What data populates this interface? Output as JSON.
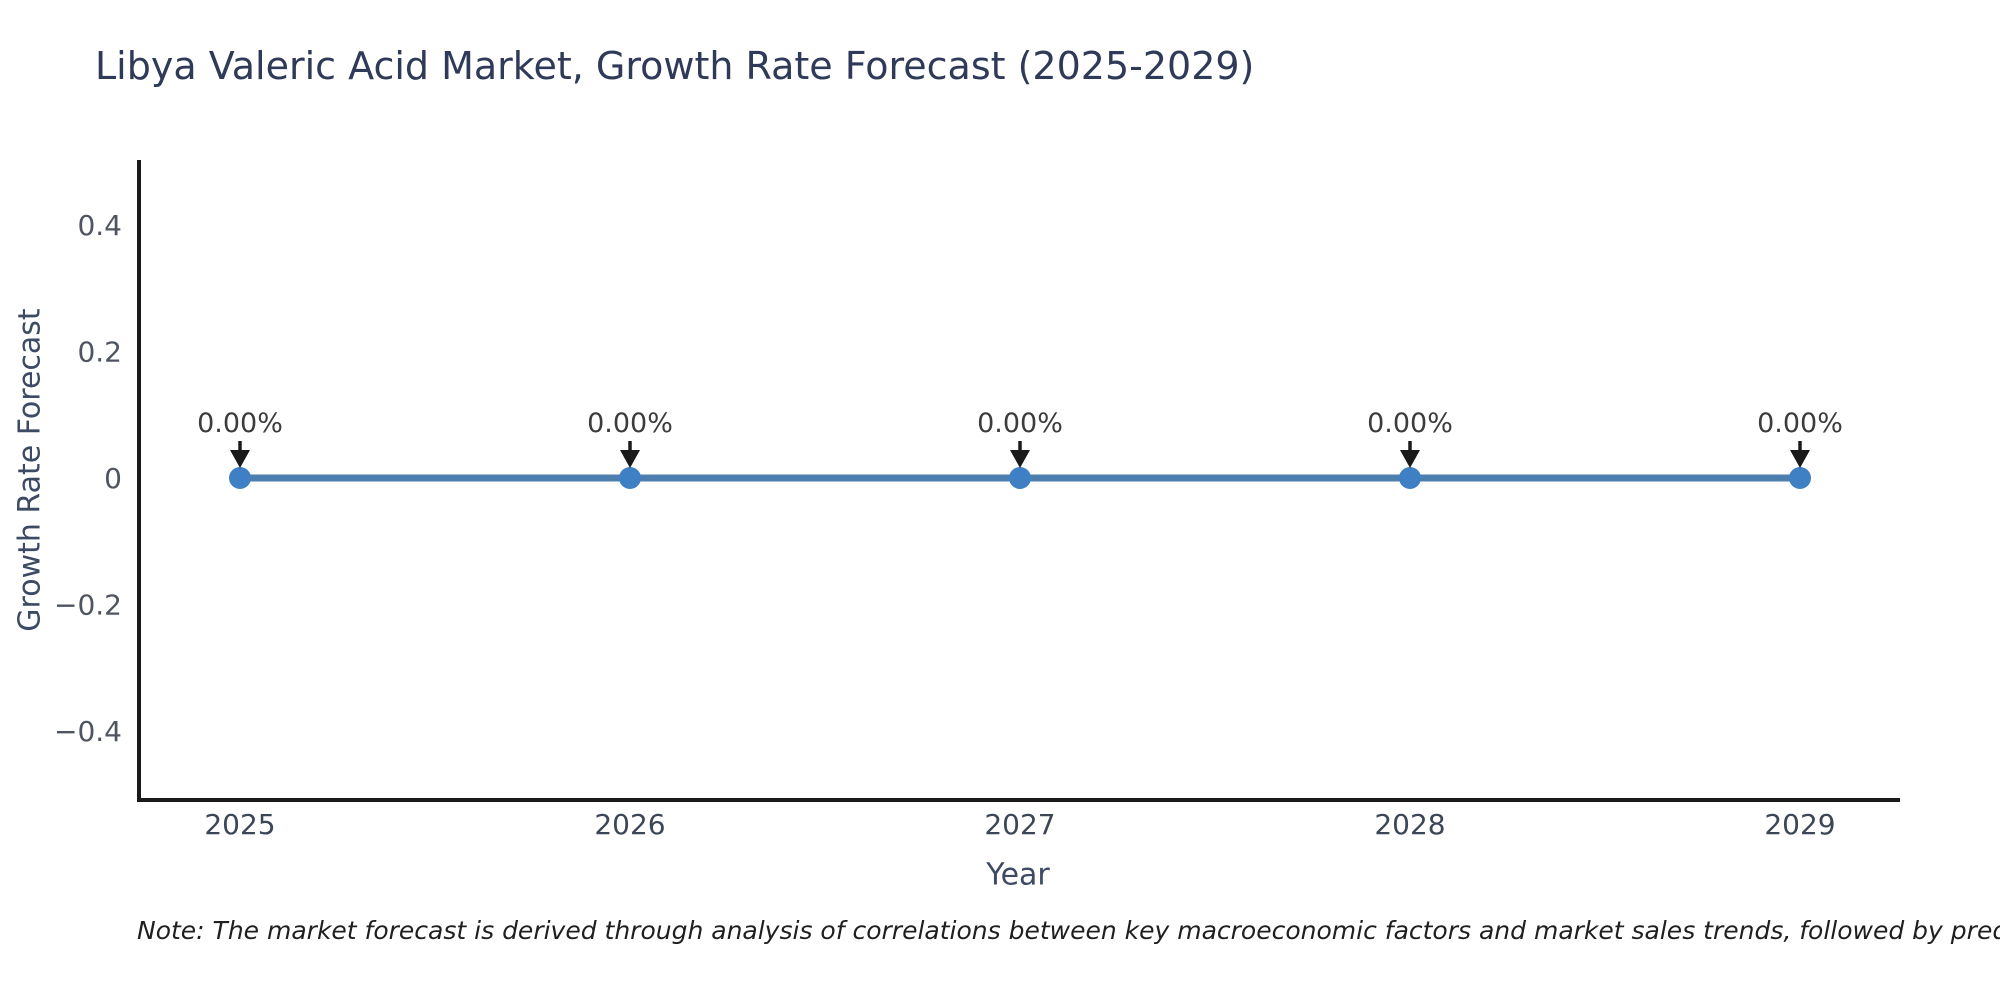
{
  "title": "Libya Valeric Acid Market, Growth Rate Forecast (2025-2029)",
  "footnote": "Note: The market forecast is derived through analysis of correlations between key macroeconomic factors and market sales trends, followed by predictive modeling to project future sa",
  "colors": {
    "line": "#4d7fae",
    "marker": "#3f80c4",
    "axis": "#1a1a1a",
    "arrow": "#1a1a1a",
    "title_text": "#2e3a57",
    "axis_title_text": "#3d4a63",
    "tick_text": "#4f5560",
    "annotation_text": "#3c3c3c"
  },
  "chart_data": {
    "type": "line",
    "title": "Libya Valeric Acid Market, Growth Rate Forecast (2025-2029)",
    "xlabel": "Year",
    "ylabel": "Growth Rate Forecast",
    "x": [
      2025,
      2026,
      2027,
      2028,
      2029
    ],
    "xtick_labels": [
      "2025",
      "2026",
      "2027",
      "2028",
      "2029"
    ],
    "series": [
      {
        "name": "Growth Rate Forecast",
        "values": [
          0,
          0,
          0,
          0,
          0
        ]
      }
    ],
    "annotations": [
      "0.00%",
      "0.00%",
      "0.00%",
      "0.00%",
      "0.00%"
    ],
    "yticks": [
      -0.4,
      -0.2,
      0,
      0.2,
      0.4
    ],
    "ytick_labels": [
      "−0.4",
      "−0.2",
      "0",
      "0.2",
      "0.4"
    ],
    "ylim": [
      -0.51,
      0.5
    ],
    "grid": false,
    "legend": "none",
    "marker": "circle"
  }
}
